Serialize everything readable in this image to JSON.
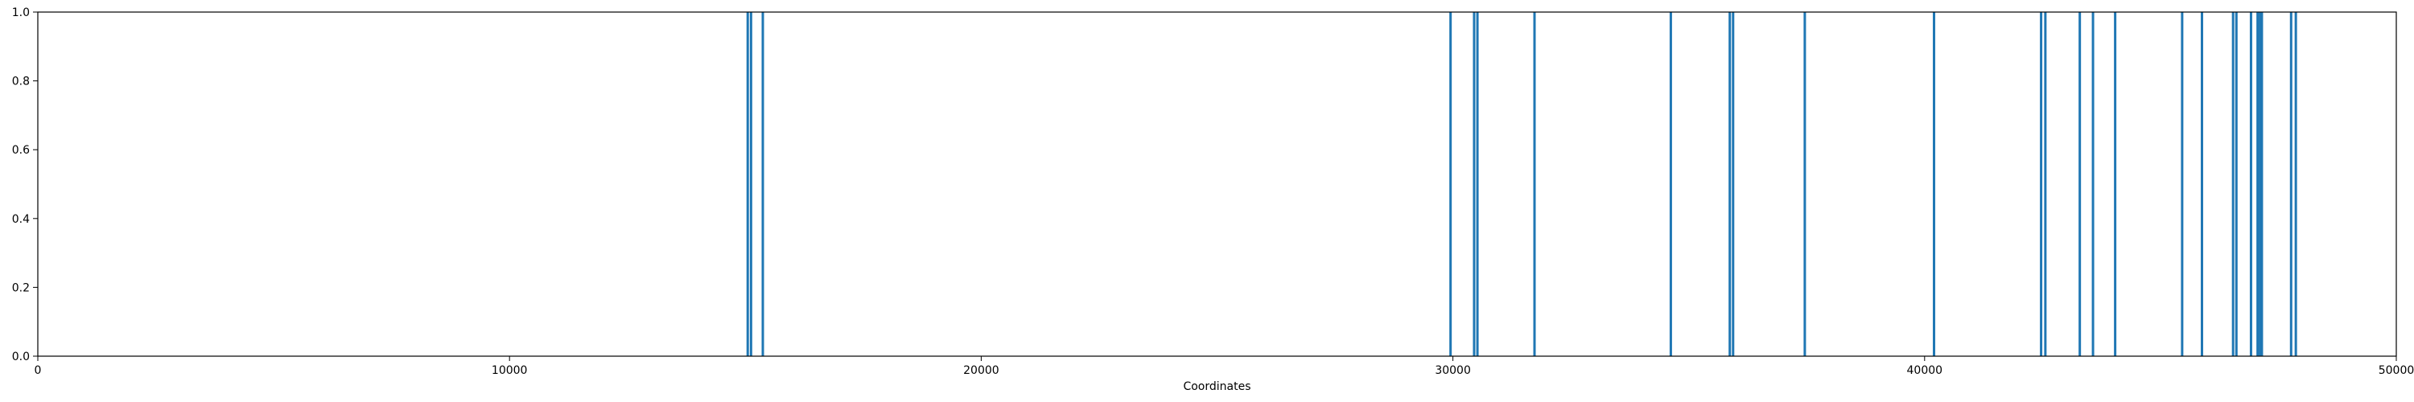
{
  "chart_data": {
    "type": "bar",
    "title": "",
    "xlabel": "Coordinates",
    "ylabel": "",
    "xlim": [
      0,
      50000
    ],
    "ylim": [
      0,
      1.0
    ],
    "x_ticks": [
      0,
      10000,
      20000,
      30000,
      40000,
      50000
    ],
    "x_tick_labels": [
      "0",
      "10000",
      "20000",
      "30000",
      "40000",
      "50000"
    ],
    "y_ticks": [
      0.0,
      0.2,
      0.4,
      0.6,
      0.8,
      1.0
    ],
    "y_tick_labels": [
      "0.0",
      "0.2",
      "0.4",
      "0.6",
      "0.8",
      "1.0"
    ],
    "grid": false,
    "color": "#1f77b4",
    "series": [
      {
        "x": [
          15050,
          15120,
          15370,
          29950,
          30450,
          30520,
          31730,
          34620,
          35870,
          35940,
          37460,
          40200,
          42470,
          42560,
          43290,
          43570,
          44040,
          45460,
          45880,
          46540,
          46610,
          46920,
          47060,
          47110,
          47150,
          47770,
          47870
        ],
        "values": [
          1,
          1,
          1,
          1,
          1,
          1,
          1,
          1,
          1,
          1,
          1,
          1,
          1,
          1,
          1,
          1,
          1,
          1,
          1,
          1,
          1,
          1,
          1,
          1,
          1,
          1,
          1
        ]
      }
    ]
  }
}
